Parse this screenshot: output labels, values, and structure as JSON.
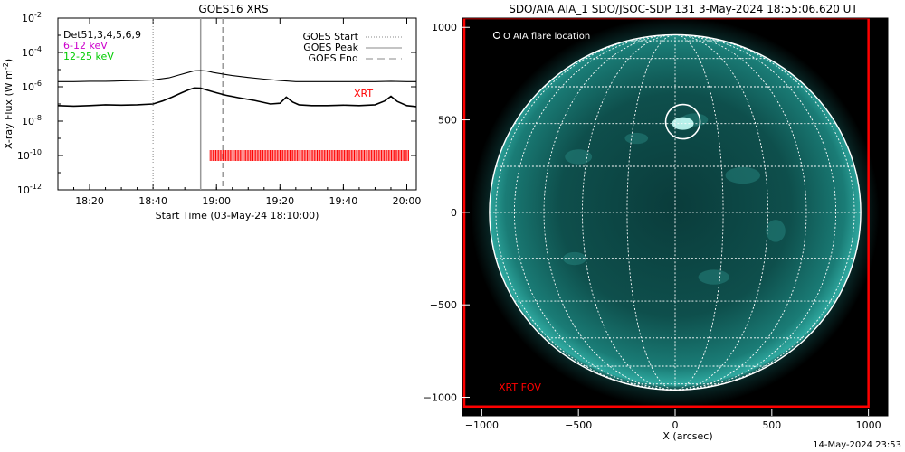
{
  "chart_data": [
    {
      "type": "line",
      "title": "GOES16 XRS",
      "xlabel": "Start Time (03-May-24 18:10:00)",
      "ylabel": "X-ray Flux (W m",
      "ylabel_sup": "-2",
      "ylabel_close": ")",
      "ylog": true,
      "y_ticks": [
        {
          "base": "10",
          "exp": "-2",
          "value": 0.01
        },
        {
          "base": "10",
          "exp": "-4",
          "value": 0.0001
        },
        {
          "base": "10",
          "exp": "-6",
          "value": 1e-06
        },
        {
          "base": "10",
          "exp": "-8",
          "value": 1e-08
        },
        {
          "base": "10",
          "exp": "-10",
          "value": 1e-10
        },
        {
          "base": "10",
          "exp": "-12",
          "value": 1e-12
        }
      ],
      "x_ticks": [
        {
          "label": "18:20",
          "minutes": 10
        },
        {
          "label": "18:40",
          "minutes": 30
        },
        {
          "label": "19:00",
          "minutes": 50
        },
        {
          "label": "19:20",
          "minutes": 70
        },
        {
          "label": "19:40",
          "minutes": 90
        },
        {
          "label": "20:00",
          "minutes": 110
        }
      ],
      "xlim_minutes": [
        0,
        113
      ],
      "ylim_exp": [
        -12,
        -2
      ],
      "legend_left": [
        {
          "text": "Det51,3,4,5,6,9",
          "color": "#000000"
        },
        {
          "text": "6-12 keV",
          "color": "#cc00cc"
        },
        {
          "text": "12-25 keV",
          "color": "#00cc00"
        }
      ],
      "legend_right": [
        {
          "text": "GOES Start",
          "style": "dotted"
        },
        {
          "text": "GOES Peak",
          "style": "solid"
        },
        {
          "text": "GOES End",
          "style": "dashed"
        }
      ],
      "markers": {
        "goes_start_min": 30,
        "goes_peak_min": 45,
        "goes_end_min": 52
      },
      "xrt_label": "XRT",
      "xrt_bar": {
        "start_min": 48,
        "end_min": 111,
        "flux": 1e-10
      },
      "series": [
        {
          "color": "#000000",
          "x": [
            0,
            5,
            10,
            15,
            20,
            25,
            30,
            35,
            38,
            41,
            43,
            45,
            47,
            49,
            52,
            55,
            60,
            65,
            70,
            75,
            80,
            85,
            90,
            95,
            100,
            105,
            110,
            113
          ],
          "values": [
            2e-06,
            2e-06,
            2.1e-06,
            2.1e-06,
            2.2e-06,
            2.3e-06,
            2.5e-06,
            3.3e-06,
            4.8e-06,
            6.8e-06,
            8.5e-06,
            8.8e-06,
            8.2e-06,
            6.8e-06,
            5.5e-06,
            4.5e-06,
            3.5e-06,
            2.8e-06,
            2.3e-06,
            2e-06,
            2e-06,
            2e-06,
            2e-06,
            2e-06,
            2e-06,
            2.1e-06,
            2e-06,
            2e-06
          ]
        },
        {
          "color": "#000000",
          "x": [
            0,
            5,
            10,
            15,
            20,
            25,
            30,
            33,
            36,
            39,
            41,
            43,
            45,
            47,
            50,
            53,
            57,
            62,
            67,
            70,
            72,
            74,
            76,
            80,
            85,
            90,
            95,
            100,
            103,
            105,
            107,
            110,
            113
          ],
          "values": [
            8e-08,
            7.5e-08,
            8e-08,
            9e-08,
            8.5e-08,
            9e-08,
            1e-07,
            1.5e-07,
            2.5e-07,
            4.5e-07,
            6.5e-07,
            8.5e-07,
            8.3e-07,
            6.5e-07,
            4.5e-07,
            3.2e-07,
            2.3e-07,
            1.6e-07,
            1e-07,
            1.1e-07,
            2.5e-07,
            1.3e-07,
            9e-08,
            8e-08,
            8e-08,
            8.5e-08,
            8e-08,
            9e-08,
            1.5e-07,
            2.8e-07,
            1.4e-07,
            8e-08,
            7e-08
          ]
        }
      ]
    },
    {
      "type": "scatter",
      "title": "SDO/AIA AIA_1 SDO/JSOC-SDP 131  3-May-2024 18:55:06.620 UT",
      "xlabel": "X (arcsec)",
      "x_ticks": [
        -1000,
        -500,
        0,
        500,
        1000
      ],
      "y_ticks": [
        1000,
        500,
        0,
        -500,
        -1000
      ],
      "xlim": [
        -1100,
        1100
      ],
      "ylim": [
        -1100,
        1050
      ],
      "legend": "O AIA flare location",
      "flare_location": {
        "x": 40,
        "y": 490
      },
      "fov_label": "XRT FOV",
      "fov": {
        "x0": -1100,
        "x1": 1000,
        "y0": -1050,
        "y1": 1050
      },
      "sun_radius_arcsec": 960,
      "colors": {
        "fov": "#ff0000",
        "disk": "#0e5a56",
        "grid": "#ffffff"
      }
    }
  ],
  "timestamp": "14-May-2024 23:53"
}
